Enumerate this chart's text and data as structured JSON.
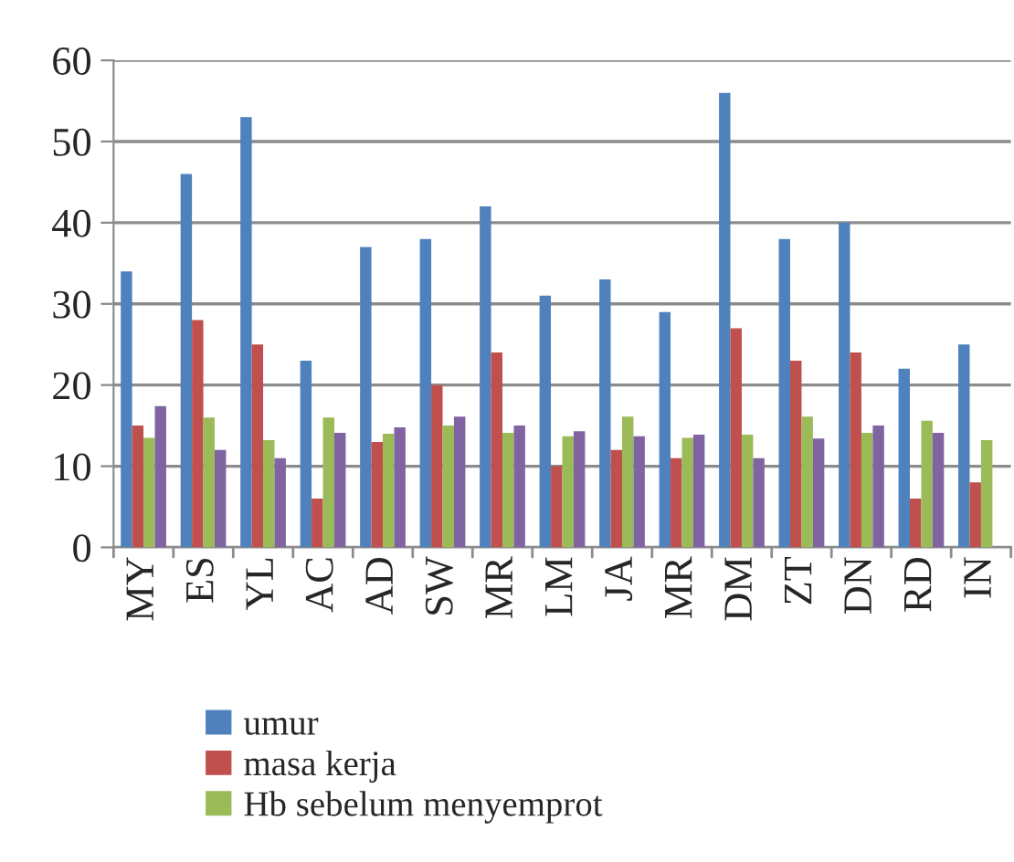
{
  "chart_data": {
    "type": "bar",
    "categories": [
      "MY",
      "ES",
      "YL",
      "AC",
      "AD",
      "SW",
      "MR",
      "LM",
      "JA",
      "MR",
      "DM",
      "ZT",
      "DN",
      "RD",
      "IN"
    ],
    "series": [
      {
        "name": "umur",
        "color": "#4f81bd",
        "values": [
          34,
          46,
          53,
          23,
          37,
          38,
          42,
          31,
          33,
          29,
          56,
          38,
          40,
          22,
          25
        ]
      },
      {
        "name": "masa kerja",
        "color": "#c0504d",
        "values": [
          15,
          28,
          25,
          6,
          13,
          20,
          24,
          10,
          12,
          11,
          27,
          23,
          24,
          6,
          8
        ]
      },
      {
        "name": "Hb sebelum menyemprot",
        "color": "#9bbb59",
        "values": [
          13.5,
          16,
          13.2,
          16,
          14,
          15,
          14.1,
          13.7,
          16.1,
          13.5,
          13.9,
          16.1,
          14.1,
          15.6,
          13.2
        ]
      },
      {
        "color": "#8064a2",
        "values": [
          17.4,
          12,
          11,
          14.1,
          14.8,
          16.1,
          15,
          14.3,
          13.7,
          13.9,
          11,
          13.4,
          15,
          14.1,
          null
        ]
      }
    ],
    "ylim": [
      0,
      60
    ],
    "yticks": [
      0,
      10,
      20,
      30,
      40,
      50,
      60
    ],
    "grid": "y",
    "legend": "bottom"
  }
}
